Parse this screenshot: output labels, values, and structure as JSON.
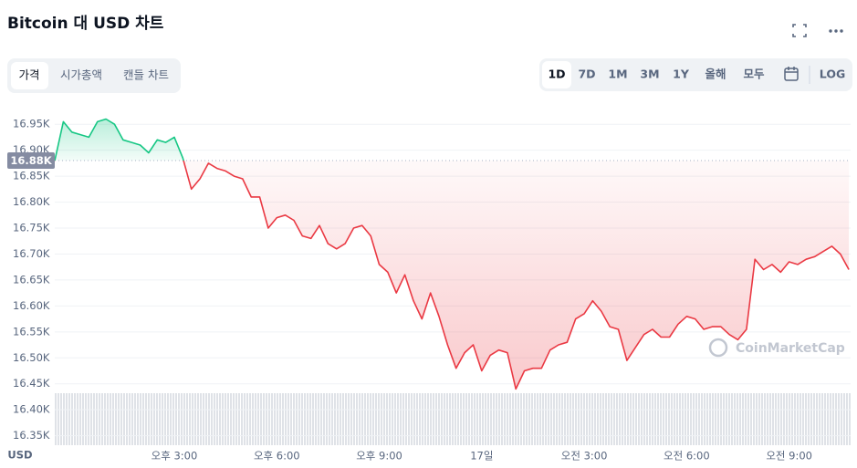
{
  "toolbar": {
    "tabs": [
      "가격",
      "시가총액",
      "캔들 차트"
    ],
    "ranges": [
      "1D",
      "7D",
      "1M",
      "3M",
      "1Y",
      "올해",
      "모두"
    ],
    "log": "LOG"
  },
  "chart_data": {
    "type": "line",
    "title": "Bitcoin 대 USD 차트",
    "ylabel": "USD",
    "watermark": "CoinMarketCap",
    "colors": {
      "above": "#16c784",
      "below": "#ea3943"
    },
    "reference": {
      "value": 16880,
      "label": "16.88K"
    },
    "xlim": [
      11.5,
      34.8
    ],
    "xticks": [
      {
        "value": 15,
        "label": "오후 3:00"
      },
      {
        "value": 18,
        "label": "오후 6:00"
      },
      {
        "value": 21,
        "label": "오후 9:00"
      },
      {
        "value": 24,
        "label": "17일"
      },
      {
        "value": 27,
        "label": "오전 3:00"
      },
      {
        "value": 30,
        "label": "오전 6:00"
      },
      {
        "value": 33,
        "label": "오전 9:00"
      }
    ],
    "ylim": [
      16330,
      16975
    ],
    "yticks": [
      {
        "value": 16350,
        "label": "16.35K"
      },
      {
        "value": 16400,
        "label": "16.40K"
      },
      {
        "value": 16450,
        "label": "16.45K"
      },
      {
        "value": 16500,
        "label": "16.50K"
      },
      {
        "value": 16550,
        "label": "16.55K"
      },
      {
        "value": 16600,
        "label": "16.60K"
      },
      {
        "value": 16650,
        "label": "16.65K"
      },
      {
        "value": 16700,
        "label": "16.70K"
      },
      {
        "value": 16750,
        "label": "16.75K"
      },
      {
        "value": 16800,
        "label": "16.80K"
      },
      {
        "value": 16850,
        "label": "16.85K"
      },
      {
        "value": 16900,
        "label": "16.90K"
      },
      {
        "value": 16950,
        "label": "16.95K"
      }
    ],
    "grid": true,
    "x": [
      11.5,
      11.75,
      12,
      12.25,
      12.5,
      12.75,
      13,
      13.25,
      13.5,
      13.75,
      14,
      14.25,
      14.5,
      14.75,
      15,
      15.25,
      15.5,
      15.75,
      16,
      16.25,
      16.5,
      16.75,
      17,
      17.25,
      17.5,
      17.75,
      18,
      18.25,
      18.5,
      18.75,
      19,
      19.25,
      19.5,
      19.75,
      20,
      20.25,
      20.5,
      20.75,
      21,
      21.25,
      21.5,
      21.75,
      22,
      22.25,
      22.5,
      22.75,
      23,
      23.25,
      23.5,
      23.75,
      24,
      24.25,
      24.5,
      24.75,
      25,
      25.25,
      25.5,
      25.75,
      26,
      26.25,
      26.5,
      26.75,
      27,
      27.25,
      27.5,
      27.75,
      28,
      28.25,
      28.5,
      28.75,
      29,
      29.25,
      29.5,
      29.75,
      30,
      30.25,
      30.5,
      30.75,
      31,
      31.25,
      31.5,
      31.75,
      32,
      32.25,
      32.5,
      32.75,
      33,
      33.25,
      33.5,
      33.75,
      34,
      34.25,
      34.5,
      34.75
    ],
    "values": [
      16880,
      16955,
      16935,
      16930,
      16925,
      16955,
      16960,
      16950,
      16920,
      16915,
      16910,
      16895,
      16920,
      16915,
      16925,
      16885,
      16825,
      16845,
      16875,
      16865,
      16860,
      16850,
      16845,
      16810,
      16810,
      16750,
      16770,
      16775,
      16765,
      16735,
      16730,
      16755,
      16720,
      16710,
      16720,
      16750,
      16755,
      16735,
      16680,
      16665,
      16625,
      16660,
      16610,
      16575,
      16625,
      16580,
      16525,
      16480,
      16510,
      16525,
      16475,
      16505,
      16515,
      16510,
      16440,
      16475,
      16480,
      16480,
      16515,
      16525,
      16530,
      16575,
      16585,
      16610,
      16590,
      16560,
      16555,
      16495,
      16520,
      16545,
      16555,
      16540,
      16540,
      16565,
      16580,
      16575,
      16555,
      16560,
      16560,
      16545,
      16535,
      16555,
      16690,
      16670,
      16680,
      16665,
      16685,
      16680,
      16690,
      16695,
      16705,
      16715,
      16700,
      16670
    ]
  }
}
